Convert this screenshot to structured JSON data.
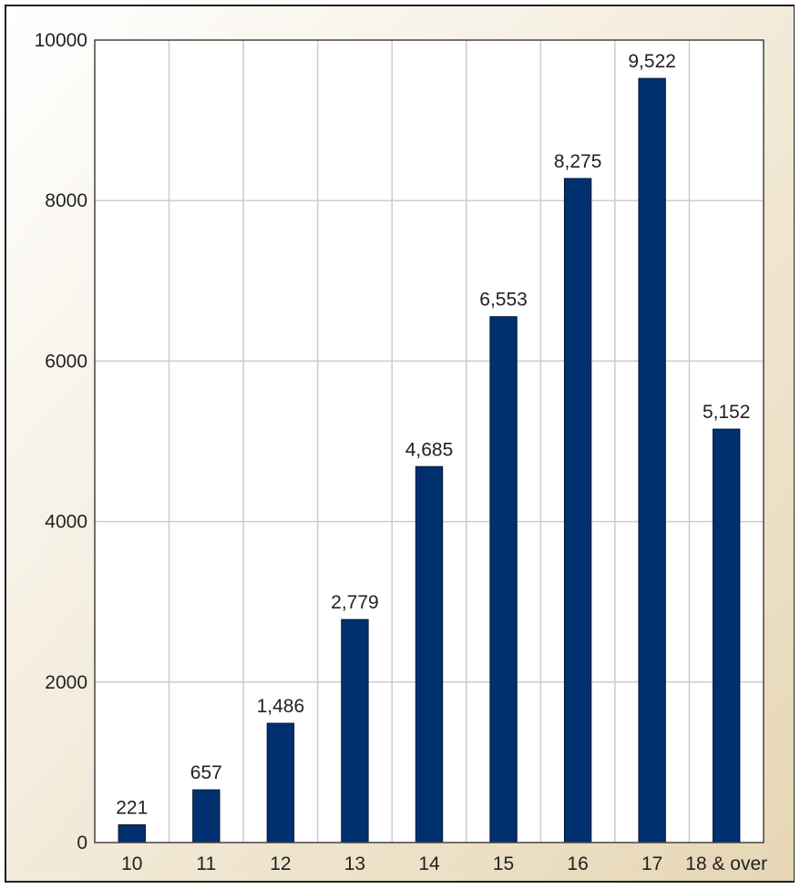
{
  "chart_data": {
    "type": "bar",
    "categories": [
      "10",
      "11",
      "12",
      "13",
      "14",
      "15",
      "16",
      "17",
      "18 & over"
    ],
    "values": [
      221,
      657,
      1486,
      2779,
      4685,
      6553,
      8275,
      9522,
      5152
    ],
    "value_labels": [
      "221",
      "657",
      "1,486",
      "2,779",
      "4,685",
      "6,553",
      "8,275",
      "9,522",
      "5,152"
    ],
    "yticks": [
      "0",
      "2000",
      "4000",
      "6000",
      "8000",
      "10000"
    ],
    "ylim": [
      0,
      10000
    ],
    "title": "",
    "xlabel": "",
    "ylabel": "",
    "grid": true,
    "colors": {
      "bar": "#003070",
      "bar_edge": "#00152e",
      "grid": "#cccccc",
      "plot_background": "#ffffff",
      "gradient_start": "#ffffff",
      "gradient_end": "#e6d6b4"
    }
  }
}
